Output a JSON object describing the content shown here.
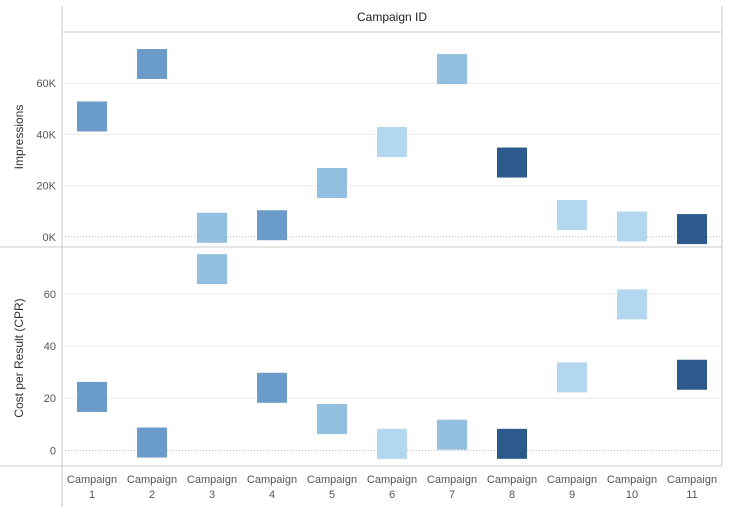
{
  "chart_data": {
    "type": "scatter",
    "title": "Campaign ID",
    "categories": [
      [
        "Campaign",
        "1"
      ],
      [
        "Campaign",
        "2"
      ],
      [
        "Campaign",
        "3"
      ],
      [
        "Campaign",
        "4"
      ],
      [
        "Campaign",
        "5"
      ],
      [
        "Campaign",
        "6"
      ],
      [
        "Campaign",
        "7"
      ],
      [
        "Campaign",
        "8"
      ],
      [
        "Campaign",
        "9"
      ],
      [
        "Campaign",
        "10"
      ],
      [
        "Campaign",
        "11"
      ]
    ],
    "panels": [
      {
        "ylabel": "Impressions",
        "ylim": [
          -4000,
          80000
        ],
        "ticks": [
          0,
          20000,
          40000,
          60000
        ],
        "tick_labels": [
          "0K",
          "20K",
          "40K",
          "60K"
        ],
        "values": [
          47000,
          67500,
          3500,
          4500,
          21000,
          37000,
          65500,
          29000,
          8500,
          4000,
          3000
        ]
      },
      {
        "ylabel": "Cost per Result (CPR)",
        "ylim": [
          -6,
          78
        ],
        "ticks": [
          0,
          20,
          40,
          60
        ],
        "tick_labels": [
          "0",
          "20",
          "40",
          "60"
        ],
        "values": [
          20.5,
          3,
          69.5,
          24,
          12,
          2.5,
          6,
          2.5,
          28,
          56,
          29
        ]
      }
    ],
    "colors": [
      "#6b9bc8",
      "#6b9bc8",
      "#92bfe0",
      "#6b9bc8",
      "#92bfe0",
      "#b3d7ee",
      "#92bfe0",
      "#2d5a8c",
      "#b3d7ee",
      "#b3d7ee",
      "#2d5a8c"
    ],
    "grid": true,
    "legend": "none"
  }
}
